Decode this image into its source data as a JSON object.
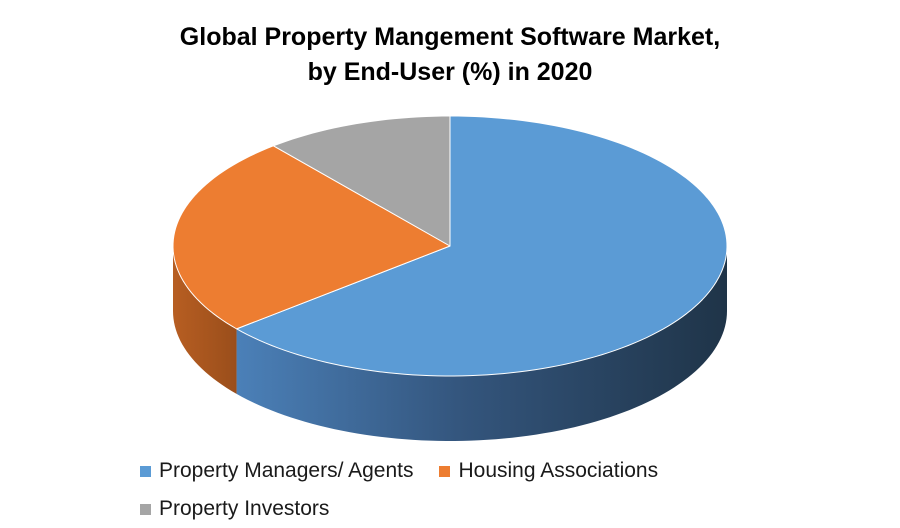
{
  "chart_data": {
    "type": "pie",
    "title_line1": "Global Property Mangement Software Market,",
    "title_line2": "by End-User (%) in 2020",
    "three_d": true,
    "legend_position": "bottom",
    "slices": [
      {
        "label": "Property Managers/ Agents",
        "value": 64,
        "color": "#5B9BD5"
      },
      {
        "label": "Housing Associations",
        "value": 25,
        "color": "#ED7D31"
      },
      {
        "label": "Property Investors",
        "value": 11,
        "color": "#A5A5A5"
      }
    ]
  }
}
